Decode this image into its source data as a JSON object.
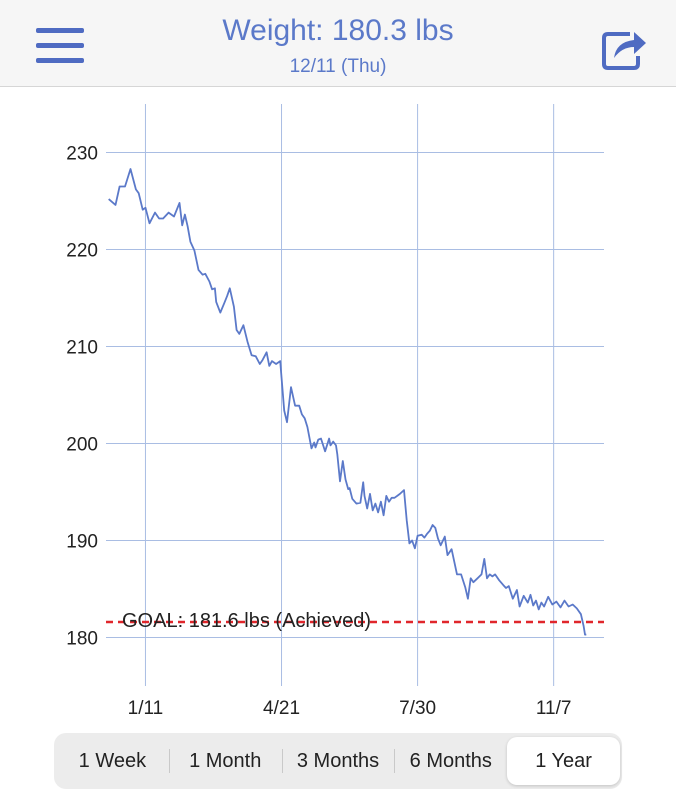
{
  "header": {
    "title": "Weight: 180.3 lbs",
    "subtitle": "12/11 (Thu)",
    "menu_icon": "hamburger-menu-icon",
    "share_icon": "share-icon"
  },
  "colors": {
    "accent": "#5b79c9",
    "line": "#5b79c9",
    "goal_line": "#e0262b",
    "grid": "#a9bde3"
  },
  "chart_data": {
    "type": "line",
    "ylim": [
      175,
      235
    ],
    "y_ticks": [
      230,
      220,
      210,
      200,
      190,
      180
    ],
    "x_ticks": [
      {
        "label": "1/11",
        "day": 11
      },
      {
        "label": "4/21",
        "day": 111
      },
      {
        "label": "7/30",
        "day": 211
      },
      {
        "label": "11/7",
        "day": 311
      }
    ],
    "xlim": [
      -18,
      348
    ],
    "goal": {
      "value": 181.6,
      "label": "GOAL: 181.6 lbs (Achieved)"
    },
    "series": [
      {
        "x": [
          -16,
          -11,
          -8,
          -4,
          0,
          4,
          6,
          9,
          11,
          14,
          18,
          21,
          24,
          28,
          32,
          36,
          38,
          40,
          42,
          44,
          47,
          50,
          53,
          55,
          58,
          60,
          62,
          63,
          66,
          69,
          71,
          73,
          76,
          78,
          80,
          83,
          86,
          89,
          92,
          95,
          97,
          100,
          102,
          104,
          107,
          110,
          113,
          115,
          118,
          121,
          124,
          126,
          128,
          130,
          133,
          135,
          136,
          138,
          140,
          143,
          146,
          147,
          149,
          151,
          152,
          154,
          156,
          158,
          160,
          161,
          163,
          166,
          169,
          171,
          172,
          174,
          176,
          178,
          180,
          182,
          184,
          186,
          188,
          190,
          192,
          194,
          196,
          198,
          201,
          203,
          205,
          207,
          209,
          211,
          214,
          216,
          218,
          220,
          222,
          224,
          226,
          228,
          231,
          233,
          236,
          238,
          240,
          243,
          246,
          248,
          250,
          252,
          255,
          258,
          260,
          262,
          264,
          266,
          268,
          271,
          274,
          276,
          278,
          281,
          284,
          286,
          289,
          292,
          294,
          296,
          298,
          300,
          302,
          304,
          307,
          310,
          313,
          316,
          319,
          322,
          325,
          328,
          331,
          333,
          334,
          335
        ],
        "y": [
          225.2,
          224.6,
          226.5,
          226.5,
          228.3,
          226.2,
          225.8,
          224.1,
          224.3,
          222.7,
          223.8,
          223.2,
          223.2,
          223.8,
          223.4,
          224.8,
          222.5,
          223.6,
          222.4,
          220.8,
          219.9,
          217.9,
          217.4,
          217.5,
          216.7,
          215.9,
          216.0,
          214.6,
          213.5,
          214.5,
          215.2,
          216.0,
          214.1,
          211.7,
          211.3,
          212.2,
          210.5,
          209.1,
          209.0,
          208.2,
          208.6,
          209.4,
          208.0,
          208.5,
          208.2,
          208.5,
          203.4,
          202.2,
          205.8,
          203.9,
          203.9,
          203.0,
          202.6,
          201.7,
          199.5,
          200.1,
          199.6,
          200.4,
          200.5,
          199.2,
          200.5,
          199.8,
          200.2,
          199.8,
          198.9,
          196.1,
          198.2,
          196.3,
          195.3,
          195.4,
          194.3,
          193.8,
          193.9,
          196.0,
          194.6,
          193.3,
          194.8,
          193.1,
          193.8,
          192.9,
          194.0,
          192.6,
          194.6,
          194.0,
          194.4,
          194.4,
          194.6,
          194.8,
          195.2,
          192.1,
          189.7,
          190.0,
          189.2,
          190.5,
          190.6,
          190.3,
          190.7,
          191.0,
          191.6,
          191.3,
          190.2,
          189.5,
          190.4,
          188.5,
          189.1,
          187.8,
          186.5,
          186.5,
          185.2,
          184.0,
          186.1,
          185.7,
          186.1,
          186.5,
          188.1,
          186.1,
          186.5,
          186.3,
          186.5,
          185.9,
          185.4,
          185.1,
          185.3,
          184.0,
          184.9,
          183.2,
          184.3,
          183.6,
          184.4,
          183.3,
          183.8,
          182.9,
          183.6,
          183.2,
          184.2,
          183.4,
          183.7,
          183.1,
          183.8,
          183.2,
          183.4,
          183.0,
          182.4,
          181.2,
          180.3,
          180.3
        ]
      }
    ]
  },
  "segments": {
    "items": [
      {
        "label": "1 Week"
      },
      {
        "label": "1 Month"
      },
      {
        "label": "3 Months"
      },
      {
        "label": "6 Months"
      },
      {
        "label": "1 Year"
      }
    ],
    "selected": "1 Year"
  }
}
